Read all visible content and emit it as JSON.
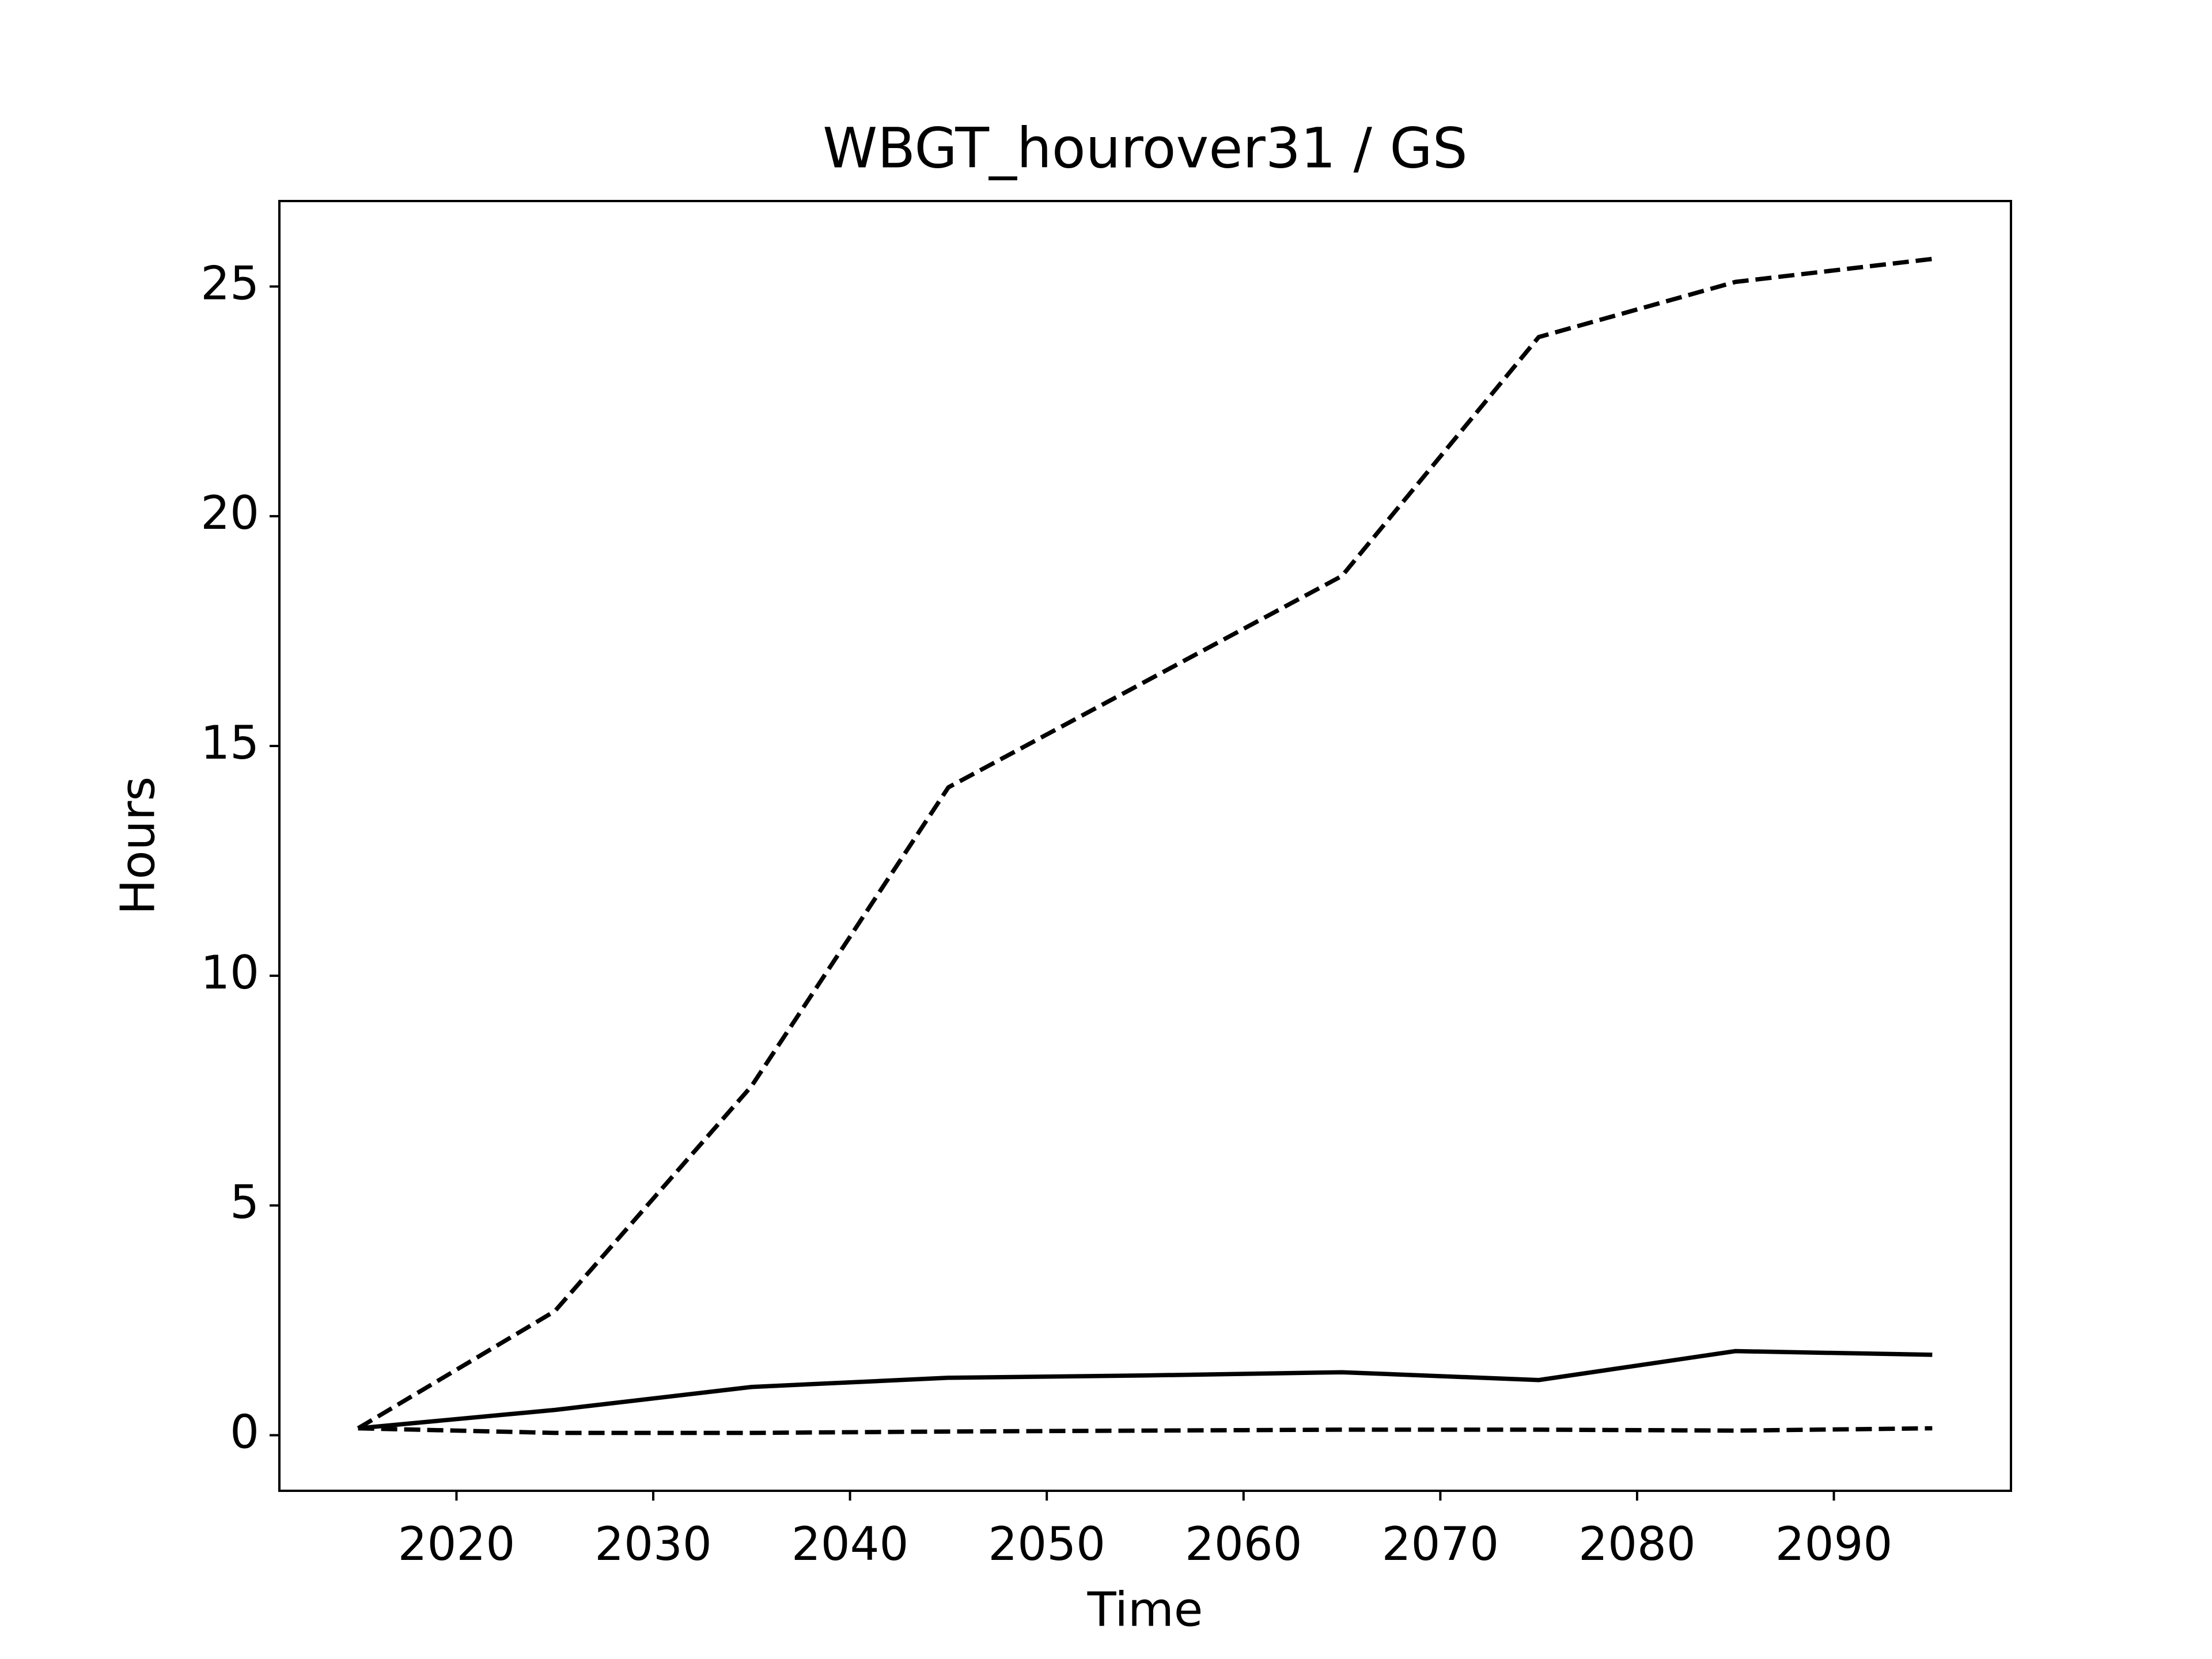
{
  "chart_data": {
    "type": "line",
    "title": "WBGT_hourover31 / GS",
    "x_label": "Time",
    "y_label": "Hours",
    "x": [
      2015,
      2025,
      2035,
      2045,
      2055,
      2065,
      2075,
      2085,
      2095
    ],
    "series": [
      {
        "color": "#000000",
        "linestyle": "dashed",
        "values": [
          0.15,
          2.7,
          7.6,
          14.1,
          16.4,
          18.7,
          23.9,
          25.1,
          25.6
        ]
      },
      {
        "color": "#000000",
        "linestyle": "solid",
        "values": [
          0.15,
          0.55,
          1.05,
          1.25,
          1.3,
          1.37,
          1.2,
          1.83,
          1.75
        ]
      },
      {
        "color": "#000000",
        "linestyle": "dashed",
        "values": [
          0.15,
          0.05,
          0.05,
          0.08,
          0.1,
          0.12,
          0.12,
          0.1,
          0.15
        ]
      }
    ],
    "xlim": [
      2011,
      2099
    ],
    "xticks": [
      2020,
      2030,
      2040,
      2050,
      2060,
      2070,
      2080,
      2090
    ],
    "ylim": [
      -1.21,
      26.86
    ],
    "yticks": [
      0,
      5,
      10,
      15,
      20,
      25
    ],
    "grid": false
  }
}
